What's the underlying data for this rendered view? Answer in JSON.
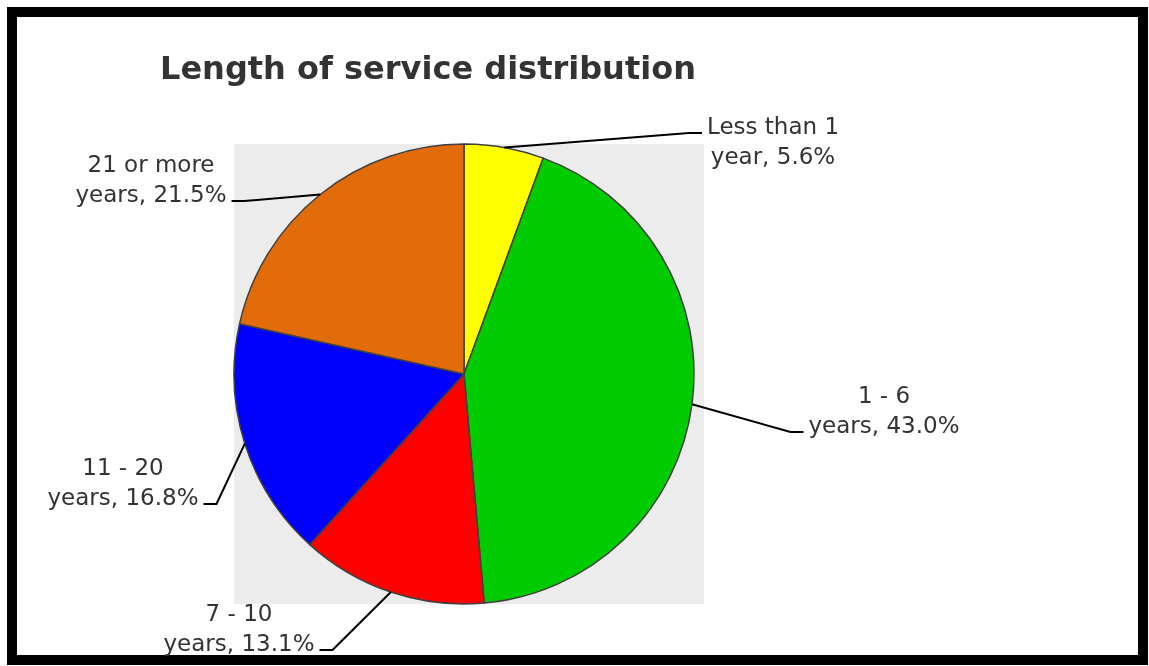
{
  "chart_data": {
    "type": "pie",
    "title": "Length of service distribution",
    "categories": [
      "Less than 1 year",
      "1 - 6 years",
      "7 - 10 years",
      "11 - 20 years",
      "21 or more years"
    ],
    "values": [
      5.6,
      43.0,
      13.1,
      16.8,
      21.5
    ],
    "colors": [
      "#ffff00",
      "#00cc00",
      "#ff0000",
      "#0000ff",
      "#e36c0a"
    ],
    "value_labels": [
      "5.6%",
      "43.0%",
      "13.1%",
      "16.8%",
      "21.5%"
    ]
  }
}
